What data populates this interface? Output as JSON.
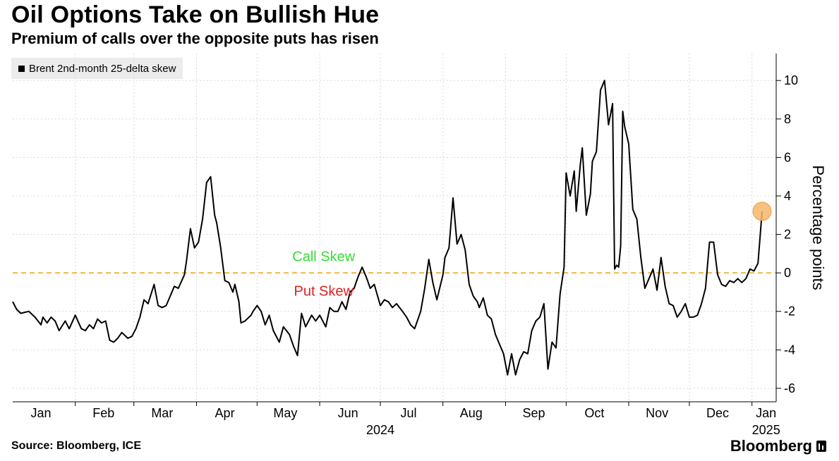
{
  "header": {
    "title": "Oil Options Take on Bullish Hue",
    "subtitle": "Premium of calls over the opposite puts has risen"
  },
  "legend": {
    "label": "Brent 2nd-month 25-delta skew"
  },
  "footer": {
    "source": "Source: Bloomberg, ICE",
    "brand": "Bloomberg"
  },
  "colors": {
    "line": "#000000",
    "zero_line": "#f0b845",
    "highlight": "#f6b66a",
    "call_text": "#33dd33",
    "put_text": "#e02020",
    "grid": "#d8d8d8"
  },
  "chart_data": {
    "type": "line",
    "title": "Oil Options Take on Bullish Hue",
    "subtitle": "Premium of calls over the opposite puts has risen",
    "ylabel": "Percentage points",
    "xlabel": "",
    "y_axis_side": "right",
    "ylim": [
      -6.7,
      11.4
    ],
    "yticks": [
      -6,
      -4,
      -2,
      0,
      2,
      4,
      6,
      8,
      10
    ],
    "xlim": [
      "2024-01-01",
      "2025-01-13"
    ],
    "x_tick_labels": [
      {
        "date": "2024-01-15",
        "label": "Jan"
      },
      {
        "date": "2024-02-15",
        "label": "Feb"
      },
      {
        "date": "2024-03-15",
        "label": "Mar"
      },
      {
        "date": "2024-04-15",
        "label": "Apr"
      },
      {
        "date": "2024-05-15",
        "label": "May"
      },
      {
        "date": "2024-06-15",
        "label": "Jun"
      },
      {
        "date": "2024-07-15",
        "label": "Jul"
      },
      {
        "date": "2024-08-15",
        "label": "Aug"
      },
      {
        "date": "2024-09-15",
        "label": "Sep"
      },
      {
        "date": "2024-10-15",
        "label": "Oct"
      },
      {
        "date": "2024-11-15",
        "label": "Nov"
      },
      {
        "date": "2024-12-15",
        "label": "Dec"
      },
      {
        "date": "2025-01-08",
        "label": "Jan"
      }
    ],
    "year_labels": [
      {
        "date": "2024-07-01",
        "label": "2024"
      },
      {
        "date": "2025-01-08",
        "label": "2025"
      }
    ],
    "grid": true,
    "legend_position": "top-left",
    "annotations": [
      {
        "text": "Call Skew",
        "y": 0.9,
        "date": "2024-05-20",
        "color": "call"
      },
      {
        "text": "Put Skew",
        "y": -0.9,
        "date": "2024-05-20",
        "color": "put"
      }
    ],
    "reference_line": {
      "y": 0,
      "style": "dashed"
    },
    "highlight_point": {
      "date": "2025-01-06",
      "y": 3.2
    },
    "series": [
      {
        "name": "Brent 2nd-month 25-delta skew",
        "x": [
          "2024-01-01",
          "2024-01-03",
          "2024-01-05",
          "2024-01-09",
          "2024-01-12",
          "2024-01-15",
          "2024-01-16",
          "2024-01-18",
          "2024-01-20",
          "2024-01-22",
          "2024-01-24",
          "2024-01-27",
          "2024-01-29",
          "2024-02-01",
          "2024-02-04",
          "2024-02-06",
          "2024-02-08",
          "2024-02-10",
          "2024-02-12",
          "2024-02-14",
          "2024-02-16",
          "2024-02-18",
          "2024-02-20",
          "2024-02-22",
          "2024-02-24",
          "2024-02-27",
          "2024-02-29",
          "2024-03-02",
          "2024-03-04",
          "2024-03-06",
          "2024-03-08",
          "2024-03-11",
          "2024-03-13",
          "2024-03-15",
          "2024-03-17",
          "2024-03-19",
          "2024-03-21",
          "2024-03-23",
          "2024-03-26",
          "2024-03-27",
          "2024-03-29",
          "2024-03-31",
          "2024-04-02",
          "2024-04-04",
          "2024-04-06",
          "2024-04-08",
          "2024-04-10",
          "2024-04-11",
          "2024-04-13",
          "2024-04-15",
          "2024-04-17",
          "2024-04-19",
          "2024-04-20",
          "2024-04-22",
          "2024-04-23",
          "2024-04-25",
          "2024-04-28",
          "2024-04-29",
          "2024-05-01",
          "2024-05-03",
          "2024-05-05",
          "2024-05-07",
          "2024-05-09",
          "2024-05-12",
          "2024-05-14",
          "2024-05-17",
          "2024-05-19",
          "2024-05-21",
          "2024-05-23",
          "2024-05-25",
          "2024-05-28",
          "2024-05-30",
          "2024-06-01",
          "2024-06-04",
          "2024-06-06",
          "2024-06-08",
          "2024-06-10",
          "2024-06-12",
          "2024-06-14",
          "2024-06-16",
          "2024-06-18",
          "2024-06-20",
          "2024-06-22",
          "2024-06-24",
          "2024-06-26",
          "2024-06-28",
          "2024-07-01",
          "2024-07-03",
          "2024-07-05",
          "2024-07-07",
          "2024-07-09",
          "2024-07-12",
          "2024-07-14",
          "2024-07-16",
          "2024-07-18",
          "2024-07-21",
          "2024-07-23",
          "2024-07-25",
          "2024-07-27",
          "2024-07-29",
          "2024-08-01",
          "2024-08-02",
          "2024-08-04",
          "2024-08-06",
          "2024-08-08",
          "2024-08-10",
          "2024-08-12",
          "2024-08-14",
          "2024-08-16",
          "2024-08-18",
          "2024-08-19",
          "2024-08-21",
          "2024-08-23",
          "2024-08-25",
          "2024-08-27",
          "2024-08-29",
          "2024-08-31",
          "2024-09-02",
          "2024-09-04",
          "2024-09-06",
          "2024-09-08",
          "2024-09-10",
          "2024-09-12",
          "2024-09-14",
          "2024-09-16",
          "2024-09-18",
          "2024-09-20",
          "2024-09-22",
          "2024-09-24",
          "2024-09-26",
          "2024-09-28",
          "2024-09-30",
          "2024-10-01",
          "2024-10-03",
          "2024-10-05",
          "2024-10-06",
          "2024-10-08",
          "2024-10-09",
          "2024-10-11",
          "2024-10-13",
          "2024-10-14",
          "2024-10-16",
          "2024-10-18",
          "2024-10-20",
          "2024-10-22",
          "2024-10-24",
          "2024-10-25",
          "2024-10-26",
          "2024-10-27",
          "2024-10-28",
          "2024-10-29",
          "2024-10-30",
          "2024-11-01",
          "2024-11-03",
          "2024-11-05",
          "2024-11-07",
          "2024-11-09",
          "2024-11-11",
          "2024-11-13",
          "2024-11-15",
          "2024-11-17",
          "2024-11-19",
          "2024-11-21",
          "2024-11-23",
          "2024-11-25",
          "2024-11-27",
          "2024-11-29",
          "2024-12-01",
          "2024-12-03",
          "2024-12-05",
          "2024-12-07",
          "2024-12-09",
          "2024-12-11",
          "2024-12-13",
          "2024-12-15",
          "2024-12-17",
          "2024-12-19",
          "2024-12-21",
          "2024-12-23",
          "2024-12-25",
          "2024-12-27",
          "2024-12-29",
          "2024-12-31",
          "2025-01-02",
          "2025-01-04",
          "2025-01-06"
        ],
        "y": [
          -1.5,
          -1.9,
          -2.1,
          -2.0,
          -2.3,
          -2.7,
          -2.3,
          -2.6,
          -2.3,
          -2.5,
          -3.0,
          -2.5,
          -2.9,
          -2.2,
          -2.9,
          -3.0,
          -2.7,
          -2.9,
          -2.4,
          -2.6,
          -2.5,
          -3.5,
          -3.6,
          -3.4,
          -3.1,
          -3.4,
          -3.3,
          -2.9,
          -2.3,
          -1.4,
          -1.6,
          -0.6,
          -1.7,
          -1.8,
          -1.7,
          -1.2,
          -0.7,
          -0.8,
          -0.1,
          0.6,
          2.3,
          1.3,
          1.6,
          2.8,
          4.7,
          5.0,
          3.0,
          2.6,
          1.3,
          -0.4,
          -0.5,
          -1.0,
          -0.6,
          -1.5,
          -2.6,
          -2.5,
          -2.2,
          -2.0,
          -1.7,
          -2.0,
          -2.7,
          -2.2,
          -3.0,
          -3.6,
          -2.8,
          -3.2,
          -3.8,
          -4.3,
          -2.1,
          -2.8,
          -2.2,
          -2.5,
          -2.2,
          -2.8,
          -1.8,
          -2.0,
          -2.0,
          -1.5,
          -1.9,
          -1.0,
          -0.8,
          -0.2,
          0.3,
          -0.2,
          -0.8,
          -0.6,
          -1.7,
          -1.4,
          -1.5,
          -1.8,
          -1.6,
          -2.0,
          -2.3,
          -2.7,
          -2.9,
          -2.0,
          -0.8,
          0.7,
          -0.5,
          -1.4,
          -0.1,
          0.8,
          1.3,
          3.9,
          1.5,
          2.0,
          1.2,
          -0.6,
          -1.2,
          -1.5,
          -1.8,
          -1.3,
          -2.2,
          -2.4,
          -3.2,
          -3.7,
          -4.2,
          -5.3,
          -4.2,
          -5.3,
          -4.5,
          -4.1,
          -4.2,
          -3.0,
          -2.5,
          -2.3,
          -1.6,
          -5.0,
          -3.6,
          -3.9,
          -1.1,
          0.3,
          5.2,
          4.0,
          5.3,
          3.2,
          5.6,
          6.5,
          3.0,
          4.1,
          5.8,
          6.3,
          9.5,
          10.0,
          7.7,
          8.8,
          0.2,
          0.4,
          0.3,
          1.4,
          8.4,
          7.6,
          6.7,
          3.3,
          2.8,
          0.8,
          -0.8,
          -0.3,
          0.2,
          -0.9,
          0.8,
          -0.7,
          -1.6,
          -1.7,
          -2.3,
          -2.0,
          -1.6,
          -2.3,
          -2.3,
          -2.2,
          -1.6,
          -0.8,
          1.6,
          1.6,
          -0.1,
          -0.6,
          -0.7,
          -0.4,
          -0.5,
          -0.3,
          -0.5,
          -0.3,
          0.2,
          0.1,
          0.5,
          3.2
        ]
      }
    ]
  }
}
